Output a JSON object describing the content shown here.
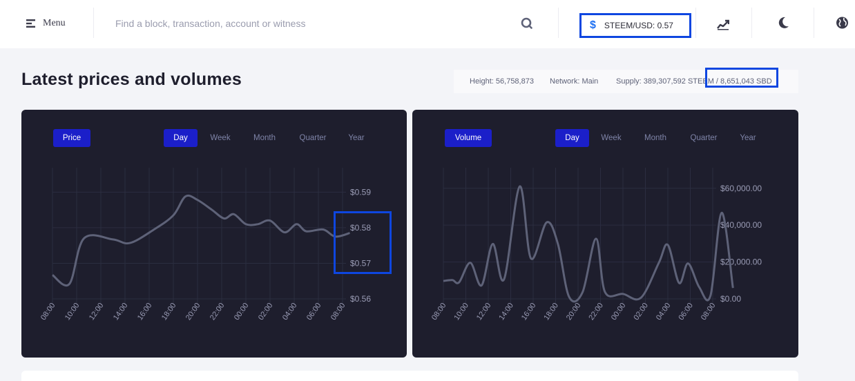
{
  "topbar": {
    "menu_label": "Menu",
    "search_placeholder": "Find a block, transaction, account or witness",
    "price_label": "STEEM/USD: 0.57",
    "icons": [
      "menu-icon",
      "search-icon",
      "dollar-icon",
      "chart-line-icon",
      "moon-icon",
      "globe-icon"
    ]
  },
  "header": {
    "title": "Latest prices and volumes",
    "height": "Height: 56,758,873",
    "network": "Network: Main",
    "supply": "Supply: 389,307,592 STEEM / 8,651,043 SBD"
  },
  "colors": {
    "accent": "#1b1fc9",
    "highlight": "#0e46e0",
    "card": "#1e1e2d",
    "line": "#5e6278"
  },
  "price_card": {
    "button": "Price",
    "tabs": [
      "Day",
      "Week",
      "Month",
      "Quarter",
      "Year"
    ],
    "active_tab": "Day"
  },
  "volume_card": {
    "button": "Volume",
    "tabs": [
      "Day",
      "Week",
      "Month",
      "Quarter",
      "Year"
    ],
    "active_tab": "Day"
  },
  "chart_data": [
    {
      "type": "line",
      "name": "price",
      "x": [
        "08:00",
        "10:00",
        "12:00",
        "14:00",
        "16:00",
        "18:00",
        "20:00",
        "22:00",
        "00:00",
        "02:00",
        "04:00",
        "06:00",
        "08:00"
      ],
      "ytick_labels": [
        "$0.59",
        "$0.58",
        "$0.57",
        "$0.56"
      ],
      "yticks": [
        0.59,
        0.58,
        0.57,
        0.56
      ],
      "ylim": [
        0.56,
        0.595
      ],
      "grid": true,
      "points": [
        [
          0.0,
          0.5667
        ],
        [
          0.7,
          0.5642
        ],
        [
          1.3,
          0.577
        ],
        [
          2.5,
          0.5767
        ],
        [
          3.2,
          0.5757
        ],
        [
          4.2,
          0.5795
        ],
        [
          5.0,
          0.5835
        ],
        [
          5.5,
          0.5888
        ],
        [
          6.0,
          0.5878
        ],
        [
          6.6,
          0.585
        ],
        [
          7.1,
          0.5826
        ],
        [
          7.5,
          0.5838
        ],
        [
          8.0,
          0.581
        ],
        [
          8.5,
          0.581
        ],
        [
          9.0,
          0.582
        ],
        [
          9.6,
          0.5787
        ],
        [
          10.1,
          0.581
        ],
        [
          10.5,
          0.579
        ],
        [
          11.2,
          0.5795
        ],
        [
          11.7,
          0.5775
        ],
        [
          12.3,
          0.5785
        ]
      ]
    },
    {
      "type": "line",
      "name": "volume",
      "x": [
        "08:00",
        "10:00",
        "12:00",
        "14:00",
        "16:00",
        "18:00",
        "20:00",
        "22:00",
        "00:00",
        "02:00",
        "04:00",
        "06:00",
        "08:00"
      ],
      "ytick_labels": [
        "$60,000.00",
        "$40,000.00",
        "$20,000.00",
        "$0.00"
      ],
      "yticks": [
        60000,
        40000,
        20000,
        0
      ],
      "ylim": [
        0,
        68000
      ],
      "grid": true,
      "points": [
        [
          0.0,
          9700
        ],
        [
          0.4,
          10200
        ],
        [
          0.7,
          9000
        ],
        [
          1.2,
          19600
        ],
        [
          1.7,
          7300
        ],
        [
          2.2,
          29800
        ],
        [
          2.7,
          10600
        ],
        [
          3.4,
          61000
        ],
        [
          3.9,
          21900
        ],
        [
          4.6,
          41500
        ],
        [
          5.1,
          30000
        ],
        [
          5.6,
          1100
        ],
        [
          6.2,
          3600
        ],
        [
          6.8,
          32600
        ],
        [
          7.2,
          3700
        ],
        [
          8.0,
          2700
        ],
        [
          8.8,
          600
        ],
        [
          9.6,
          19600
        ],
        [
          10.0,
          29300
        ],
        [
          10.5,
          8600
        ],
        [
          10.9,
          19200
        ],
        [
          11.4,
          6300
        ],
        [
          11.9,
          1800
        ],
        [
          12.4,
          46700
        ],
        [
          12.9,
          5900
        ]
      ]
    }
  ]
}
